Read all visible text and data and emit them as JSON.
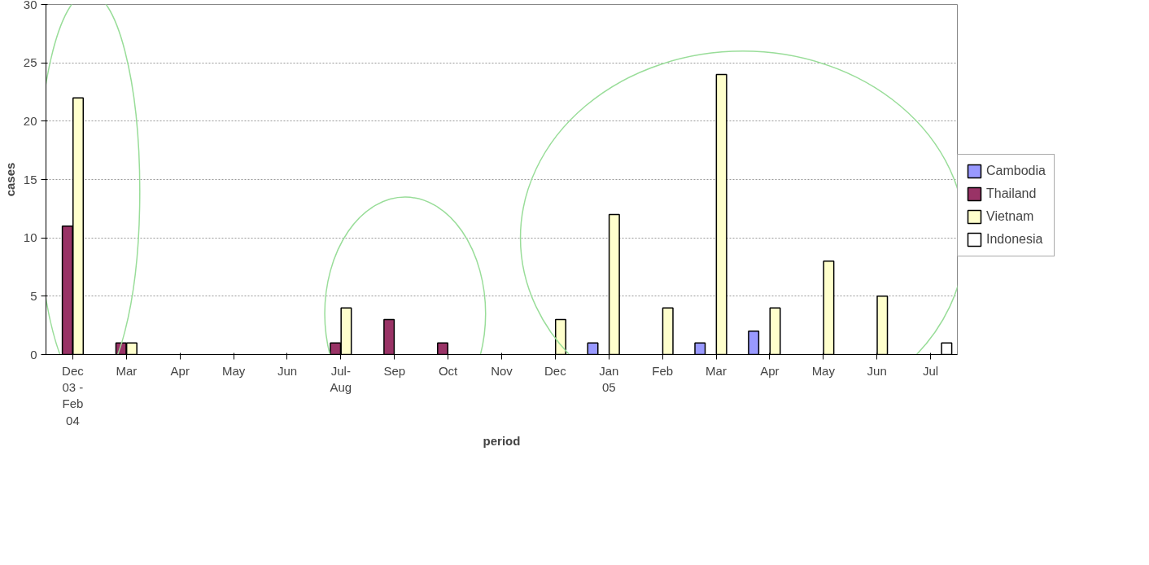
{
  "chart_data": {
    "type": "bar",
    "xlabel": "period",
    "ylabel": "cases",
    "categories": [
      "Dec\n03 -\nFeb\n04",
      "Mar",
      "Apr",
      "May",
      "Jun",
      "Jul-\nAug",
      "Sep",
      "Oct",
      "Nov",
      "Dec",
      "Jan\n05",
      "Feb",
      "Mar",
      "Apr",
      "May",
      "Jun",
      "Jul"
    ],
    "series": [
      {
        "name": "Cambodia",
        "color": "#9999ff",
        "values": [
          0,
          0,
          0,
          0,
          0,
          0,
          0,
          0,
          0,
          0,
          1,
          0,
          1,
          2,
          0,
          0,
          0
        ]
      },
      {
        "name": "Thailand",
        "color": "#993366",
        "values": [
          11,
          1,
          0,
          0,
          0,
          1,
          3,
          1,
          0,
          0,
          0,
          0,
          0,
          0,
          0,
          0,
          0
        ]
      },
      {
        "name": "Vietnam",
        "color": "#ffffcc",
        "values": [
          22,
          1,
          0,
          0,
          0,
          4,
          0,
          0,
          0,
          3,
          12,
          4,
          24,
          4,
          8,
          5,
          0
        ]
      },
      {
        "name": "Indonesia",
        "color": "#ffffff",
        "values": [
          0,
          0,
          0,
          0,
          0,
          0,
          0,
          0,
          0,
          0,
          0,
          0,
          0,
          0,
          0,
          0,
          1
        ]
      }
    ],
    "ylim": [
      0,
      30
    ],
    "yticks": [
      0,
      5,
      10,
      15,
      20,
      25,
      30
    ],
    "grid": "y",
    "legend": "right"
  }
}
